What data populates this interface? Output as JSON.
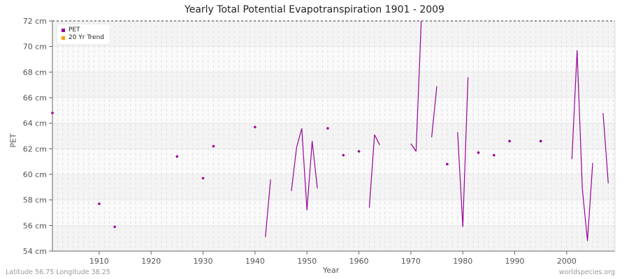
{
  "title": "Yearly Total Potential Evapotranspiration 1901 - 2009",
  "ylabel": "PET",
  "xlabel": "Year",
  "footer_left": "Latitude 56.75 Longitude 38.25",
  "footer_right": "worldspecies.org",
  "legend": [
    {
      "label": "PET",
      "color": "#990099"
    },
    {
      "label": "20 Yr Trend",
      "color": "#ff9900"
    }
  ],
  "chart_data": {
    "type": "line",
    "title": "Yearly Total Potential Evapotranspiration 1901 - 2009",
    "xlabel": "Year",
    "ylabel": "PET",
    "xlim": [
      1901,
      2009
    ],
    "ylim": [
      54,
      72
    ],
    "y_unit": "cm",
    "yticks": [
      "54 cm",
      "56 cm",
      "58 cm",
      "60 cm",
      "62 cm",
      "64 cm",
      "66 cm",
      "68 cm",
      "70 cm",
      "72 cm"
    ],
    "xticks": [
      "1910",
      "1920",
      "1930",
      "1940",
      "1950",
      "1960",
      "1970",
      "1980",
      "1990",
      "2000"
    ],
    "grid": true,
    "legend_position": "top-left",
    "series": [
      {
        "name": "PET",
        "color": "#990099",
        "points": [
          [
            1901,
            64.8
          ],
          [
            1910,
            57.7
          ],
          [
            1913,
            55.9
          ],
          [
            1925,
            61.4
          ],
          [
            1930,
            59.7
          ],
          [
            1932,
            62.2
          ],
          [
            1940,
            63.7
          ],
          [
            1942,
            55.1
          ],
          [
            1943,
            59.6
          ],
          [
            1947,
            58.7
          ],
          [
            1948,
            62.1
          ],
          [
            1949,
            63.6
          ],
          [
            1950,
            57.2
          ],
          [
            1951,
            62.6
          ],
          [
            1952,
            58.9
          ],
          [
            1954,
            63.6
          ],
          [
            1957,
            61.5
          ],
          [
            1960,
            61.8
          ],
          [
            1962,
            57.4
          ],
          [
            1963,
            63.1
          ],
          [
            1964,
            62.3
          ],
          [
            1970,
            62.4
          ],
          [
            1971,
            61.8
          ],
          [
            1972,
            72.0
          ],
          [
            1974,
            62.9
          ],
          [
            1975,
            66.9
          ],
          [
            1977,
            60.8
          ],
          [
            1979,
            63.3
          ],
          [
            1980,
            55.9
          ],
          [
            1981,
            67.6
          ],
          [
            1983,
            61.7
          ],
          [
            1986,
            61.5
          ],
          [
            1989,
            62.6
          ],
          [
            1995,
            62.6
          ],
          [
            2001,
            61.2
          ],
          [
            2002,
            69.7
          ],
          [
            2003,
            58.9
          ],
          [
            2004,
            54.8
          ],
          [
            2005,
            60.9
          ],
          [
            2007,
            64.8
          ],
          [
            2008,
            59.3
          ]
        ]
      },
      {
        "name": "20 Yr Trend",
        "color": "#ff9900",
        "points": []
      }
    ]
  }
}
